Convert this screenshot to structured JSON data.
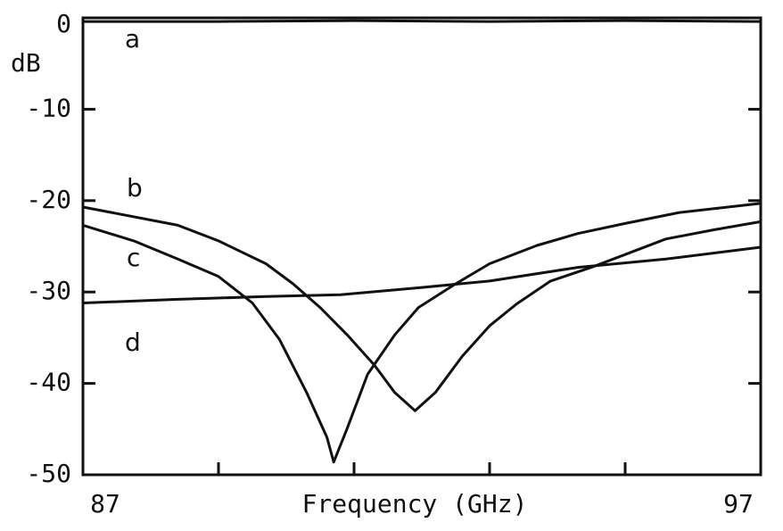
{
  "chart_data": {
    "type": "line",
    "x_label": "Frequency (GHz)",
    "y_label": "dB",
    "xlim": [
      87,
      97
    ],
    "xticks": [
      87,
      97
    ],
    "xminor_ticks": [
      89,
      91,
      93,
      95
    ],
    "ylim": [
      -50,
      0
    ],
    "yticks": [
      0,
      -10,
      -20,
      -30,
      -40,
      -50
    ],
    "color": "#111111",
    "series": [
      {
        "name": "a",
        "x": [
          87,
          89,
          91,
          93,
          95,
          97
        ],
        "values": [
          -0.4,
          -0.4,
          -0.3,
          -0.4,
          -0.3,
          -0.4
        ]
      },
      {
        "name": "b",
        "x": [
          87,
          88.4,
          89,
          89.7,
          90.1,
          90.5,
          90.9,
          91.3,
          91.6,
          91.9,
          92.2,
          92.6,
          93,
          93.4,
          93.9,
          94.5,
          95,
          95.6,
          96.3,
          97
        ],
        "values": [
          -20.7,
          -22.7,
          -24.4,
          -26.9,
          -29.1,
          -31.7,
          -34.7,
          -38,
          -41,
          -43,
          -41,
          -37,
          -33.7,
          -31.3,
          -28.8,
          -27.3,
          -25.9,
          -24.2,
          -23.2,
          -22.3
        ]
      },
      {
        "name": "c",
        "x": [
          87,
          87.75,
          88.4,
          89,
          89.5,
          89.9,
          90.3,
          90.6,
          90.7,
          90.9,
          91.2,
          91.6,
          91.95,
          92.5,
          93,
          93.7,
          94.3,
          95,
          95.8,
          97
        ],
        "values": [
          -22.7,
          -24.4,
          -26.4,
          -28.3,
          -31.2,
          -35.2,
          -41,
          -45.9,
          -48.6,
          -44.9,
          -39,
          -34.7,
          -31.7,
          -29.1,
          -26.9,
          -24.9,
          -23.6,
          -22.5,
          -21.3,
          -20.3
        ]
      },
      {
        "name": "d",
        "x": [
          87,
          88.4,
          89.7,
          90.8,
          92,
          93,
          94.3,
          95.6,
          97
        ],
        "values": [
          -31.2,
          -30.8,
          -30.5,
          -30.3,
          -29.5,
          -28.8,
          -27.3,
          -26.4,
          -25.1
        ]
      }
    ]
  }
}
